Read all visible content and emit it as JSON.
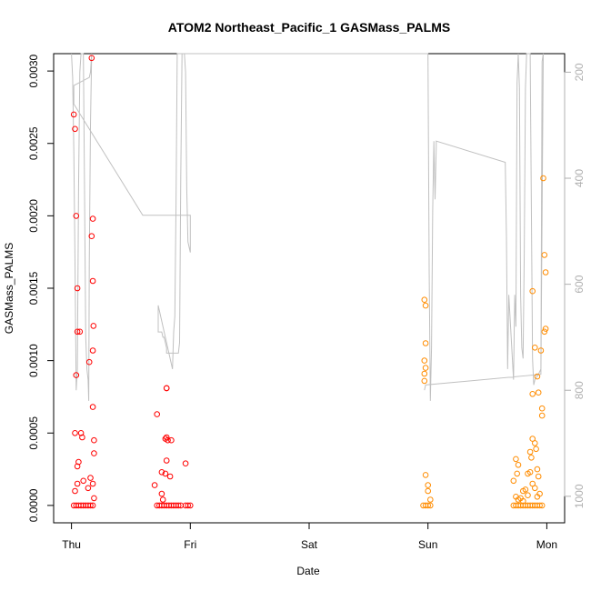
{
  "chart_data": {
    "type": "scatter",
    "title": "ATOM2 Northeast_Pacific_1 GASMass_PALMS",
    "xlabel": "Date",
    "ylabel": "GASMass_PALMS",
    "x_ticks": [
      "Thu",
      "Fri",
      "Sat",
      "Sun",
      "Mon"
    ],
    "x_range_days": [
      -0.15,
      4.15
    ],
    "ylim": [
      -0.00012,
      0.00312
    ],
    "y_ticks": [
      "0.0000",
      "0.0005",
      "0.0010",
      "0.0015",
      "0.0020",
      "0.0025",
      "0.0030"
    ],
    "y_tick_values": [
      0,
      0.0005,
      0.001,
      0.0015,
      0.002,
      0.0025,
      0.003
    ],
    "y2_ticks": [
      "200",
      "400",
      "600",
      "800",
      "1000"
    ],
    "y2_tick_values": [
      200,
      400,
      600,
      800,
      1000
    ],
    "y2_range": [
      1050,
      165
    ],
    "grid": false,
    "series": [
      {
        "color": "#ff0000",
        "points": [
          [
            0.02,
            0.0027
          ],
          [
            0.03,
            0.0026
          ],
          [
            0.04,
            0.002
          ],
          [
            0.05,
            0.0015
          ],
          [
            0.05,
            0.0012
          ],
          [
            0.04,
            0.0009
          ],
          [
            0.03,
            0.0005
          ],
          [
            0.06,
            0.0003
          ],
          [
            0.03,
            0.0001
          ],
          [
            0.05,
            0.00027
          ],
          [
            0.07,
            0.0012
          ],
          [
            0.08,
            0.0005
          ],
          [
            0.02,
            0.0
          ],
          [
            0.04,
            0.0
          ],
          [
            0.06,
            0.0
          ],
          [
            0.08,
            0.0
          ],
          [
            0.1,
            0.0
          ],
          [
            0.12,
            0.0
          ],
          [
            0.14,
            0.0
          ],
          [
            0.16,
            0.0
          ],
          [
            0.18,
            0.0
          ],
          [
            0.05,
            0.00015
          ],
          [
            0.09,
            0.00047
          ],
          [
            0.1,
            0.00017
          ],
          [
            0.14,
            0.00012
          ],
          [
            0.15,
            0.00099
          ],
          [
            0.16,
            0.00019
          ],
          [
            0.17,
            0.00309
          ],
          [
            0.18,
            0.00198
          ],
          [
            0.17,
            0.00186
          ],
          [
            0.18,
            0.00155
          ],
          [
            0.185,
            0.00124
          ],
          [
            0.18,
            0.00107
          ],
          [
            0.18,
            0.00068
          ],
          [
            0.19,
            0.00045
          ],
          [
            0.19,
            0.00036
          ],
          [
            0.18,
            0.00015
          ],
          [
            0.19,
            5e-05
          ],
          [
            0.72,
            0.00063
          ],
          [
            0.7,
            0.00014
          ],
          [
            0.72,
            0.0
          ],
          [
            0.74,
            0.0
          ],
          [
            0.76,
            0.0
          ],
          [
            0.78,
            0.0
          ],
          [
            0.8,
            0.0
          ],
          [
            0.82,
            0.0
          ],
          [
            0.84,
            0.0
          ],
          [
            0.86,
            0.0
          ],
          [
            0.88,
            0.0
          ],
          [
            0.9,
            0.0
          ],
          [
            0.92,
            0.0
          ],
          [
            0.96,
            0.0
          ],
          [
            0.98,
            0.0
          ],
          [
            1.0,
            0.0
          ],
          [
            0.76,
            8e-05
          ],
          [
            0.77,
            4e-05
          ],
          [
            0.76,
            0.00023
          ],
          [
            0.79,
            0.00022
          ],
          [
            0.8,
            0.00031
          ],
          [
            0.83,
            0.0002
          ],
          [
            0.79,
            0.00046
          ],
          [
            0.8,
            0.00047
          ],
          [
            0.81,
            0.00045
          ],
          [
            0.84,
            0.00045
          ],
          [
            0.8,
            0.00081
          ],
          [
            0.8,
            0.00081
          ],
          [
            0.96,
            0.00029
          ]
        ]
      },
      {
        "color": "#ff8c00",
        "points": [
          [
            2.97,
            0.00142
          ],
          [
            2.98,
            0.00138
          ],
          [
            2.98,
            0.00112
          ],
          [
            2.97,
            0.001
          ],
          [
            2.98,
            0.00095
          ],
          [
            2.97,
            0.00091
          ],
          [
            2.97,
            0.00086
          ],
          [
            2.98,
            0.00021
          ],
          [
            3.0,
            0.00014
          ],
          [
            3.0,
            0.0001
          ],
          [
            3.02,
            4e-05
          ],
          [
            2.96,
            0.0
          ],
          [
            2.98,
            0.0
          ],
          [
            3.0,
            0.0
          ],
          [
            3.02,
            0.0
          ],
          [
            3.72,
            0.00017
          ],
          [
            3.74,
            0.00032
          ],
          [
            3.76,
            0.00028
          ],
          [
            3.75,
            0.00022
          ],
          [
            3.78,
            5e-05
          ],
          [
            3.8,
            0.0001
          ],
          [
            3.82,
            0.00011
          ],
          [
            3.84,
            0.00022
          ],
          [
            3.86,
            0.00023
          ],
          [
            3.86,
            0.00037
          ],
          [
            3.87,
            0.00033
          ],
          [
            3.88,
            0.00046
          ],
          [
            3.9,
            0.00043
          ],
          [
            3.91,
            0.00039
          ],
          [
            3.92,
            0.00025
          ],
          [
            3.93,
            0.0002
          ],
          [
            3.94,
            8e-05
          ],
          [
            3.88,
            0.00148
          ],
          [
            3.9,
            0.00109
          ],
          [
            3.88,
            0.00077
          ],
          [
            3.92,
            0.00089
          ],
          [
            3.93,
            0.00078
          ],
          [
            3.95,
            0.00107
          ],
          [
            3.96,
            0.00067
          ],
          [
            3.97,
            0.00226
          ],
          [
            3.98,
            0.00173
          ],
          [
            3.99,
            0.00161
          ],
          [
            3.99,
            0.00122
          ],
          [
            3.98,
            0.0012
          ],
          [
            3.96,
            0.00062
          ],
          [
            3.72,
            0.0
          ],
          [
            3.74,
            0.0
          ],
          [
            3.76,
            0.0
          ],
          [
            3.78,
            0.0
          ],
          [
            3.8,
            0.0
          ],
          [
            3.82,
            0.0
          ],
          [
            3.84,
            0.0
          ],
          [
            3.86,
            0.0
          ],
          [
            3.88,
            0.0
          ],
          [
            3.9,
            0.0
          ],
          [
            3.92,
            0.0
          ],
          [
            3.94,
            0.0
          ],
          [
            3.96,
            0.0
          ],
          [
            3.74,
            6e-05
          ],
          [
            3.76,
            4e-05
          ],
          [
            3.8,
            3e-05
          ],
          [
            3.84,
            7e-05
          ],
          [
            3.88,
            0.00015
          ],
          [
            3.9,
            0.00012
          ],
          [
            3.92,
            6e-05
          ]
        ]
      }
    ],
    "pressure_line": {
      "color": "#c0c0c0",
      "axis": "right",
      "points": [
        [
          0.0,
          165
        ],
        [
          0.01,
          210
        ],
        [
          0.02,
          350
        ],
        [
          0.03,
          560
        ],
        [
          0.04,
          800
        ],
        [
          0.05,
          760
        ],
        [
          0.06,
          420
        ],
        [
          0.07,
          200
        ],
        [
          0.08,
          165
        ],
        [
          0.1,
          165
        ],
        [
          0.11,
          430
        ],
        [
          0.12,
          700
        ],
        [
          0.13,
          760
        ],
        [
          0.14,
          780
        ],
        [
          0.145,
          820
        ],
        [
          0.15,
          560
        ],
        [
          0.16,
          300
        ],
        [
          0.17,
          165
        ],
        [
          0.16,
          200
        ],
        [
          0.15,
          210
        ],
        [
          0.02,
          225
        ],
        [
          0.02,
          260
        ],
        [
          0.6,
          470
        ],
        [
          1.0,
          470
        ],
        [
          1.0,
          540
        ],
        [
          0.98,
          520
        ],
        [
          0.97,
          420
        ],
        [
          0.96,
          200
        ],
        [
          0.95,
          165
        ],
        [
          0.93,
          165
        ],
        [
          0.92,
          400
        ],
        [
          0.91,
          710
        ],
        [
          0.9,
          730
        ],
        [
          0.8,
          730
        ],
        [
          0.8,
          720
        ],
        [
          0.78,
          700
        ],
        [
          0.77,
          700
        ],
        [
          0.76,
          690
        ],
        [
          0.73,
          690
        ],
        [
          0.73,
          640
        ],
        [
          0.85,
          760
        ],
        [
          0.86,
          690
        ],
        [
          0.87,
          660
        ],
        [
          0.88,
          450
        ],
        [
          0.89,
          165
        ],
        [
          3.0,
          165
        ],
        [
          3.01,
          570
        ],
        [
          3.02,
          820
        ],
        [
          3.03,
          720
        ],
        [
          3.04,
          460
        ],
        [
          3.05,
          330
        ],
        [
          3.06,
          440
        ],
        [
          3.07,
          340
        ],
        [
          3.07,
          330
        ],
        [
          3.65,
          370
        ],
        [
          3.66,
          510
        ],
        [
          3.67,
          760
        ],
        [
          3.68,
          620
        ],
        [
          3.7,
          700
        ],
        [
          3.72,
          780
        ],
        [
          3.73,
          620
        ],
        [
          3.74,
          680
        ],
        [
          3.75,
          220
        ],
        [
          3.76,
          165
        ],
        [
          3.77,
          230
        ],
        [
          3.78,
          620
        ],
        [
          3.79,
          720
        ],
        [
          3.8,
          740
        ],
        [
          3.81,
          540
        ],
        [
          3.82,
          230
        ],
        [
          3.83,
          165
        ],
        [
          3.86,
          165
        ],
        [
          3.88,
          740
        ],
        [
          3.89,
          790
        ],
        [
          3.9,
          780
        ],
        [
          3.93,
          770
        ],
        [
          3.95,
          760
        ],
        [
          3.96,
          180
        ],
        [
          3.97,
          165
        ],
        [
          3.95,
          770
        ],
        [
          2.98,
          790
        ],
        [
          2.97,
          800
        ]
      ]
    }
  }
}
